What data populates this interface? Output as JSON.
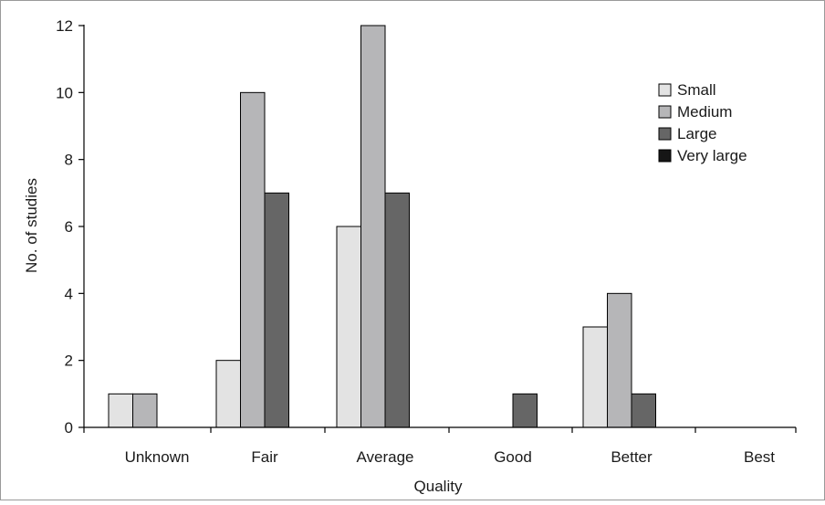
{
  "chart_data": {
    "type": "bar",
    "title": "",
    "xlabel": "Quality",
    "ylabel": "No. of studies",
    "ylim": [
      0,
      12
    ],
    "yticks": [
      0,
      2,
      4,
      6,
      8,
      10,
      12
    ],
    "grid": false,
    "legend_position": "top-right",
    "categories": [
      "Unknown",
      "Fair",
      "Average",
      "Good",
      "Better",
      "Best"
    ],
    "series": [
      {
        "name": "Small",
        "color": "#e3e3e3",
        "values": [
          1,
          2,
          6,
          0,
          3,
          0
        ]
      },
      {
        "name": "Medium",
        "color": "#b6b6b8",
        "values": [
          1,
          10,
          12,
          0,
          4,
          0
        ]
      },
      {
        "name": "Large",
        "color": "#666666",
        "values": [
          0,
          7,
          7,
          1,
          1,
          0
        ]
      },
      {
        "name": "Very large",
        "color": "#161616",
        "values": [
          0,
          0,
          0,
          0,
          0,
          0
        ]
      }
    ]
  }
}
